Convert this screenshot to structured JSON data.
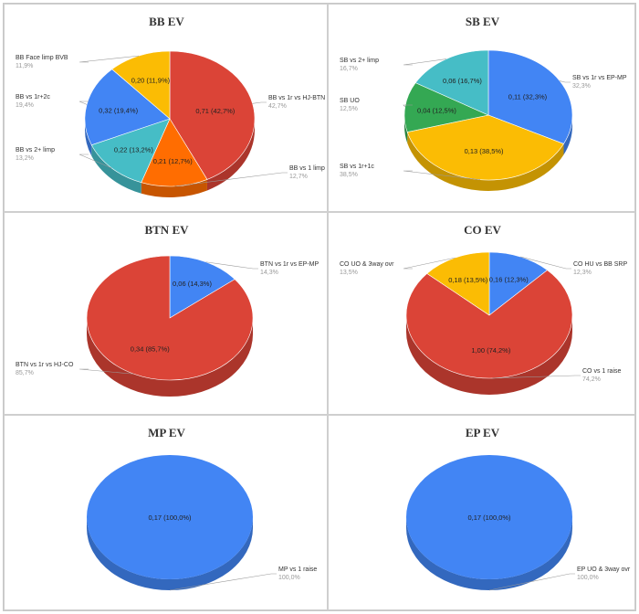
{
  "chart_data": [
    {
      "type": "pie",
      "title": "BB EV",
      "slices": [
        {
          "name": "BB vs 1r vs HJ-BTN",
          "value": 0.71,
          "percent": "42,7%",
          "label": "0,71 (42,7%)",
          "color": "#db4437"
        },
        {
          "name": "BB vs 1 limp",
          "value": 0.21,
          "percent": "12,7%",
          "label": "0,21 (12,7%)",
          "color": "#ff6d01"
        },
        {
          "name": "BB vs 2+ limp",
          "value": 0.22,
          "percent": "13,2%",
          "label": "0,22 (13,2%)",
          "color": "#46bdc6"
        },
        {
          "name": "BB vs 1r+2c",
          "value": 0.32,
          "percent": "19,4%",
          "label": "0,32 (19,4%)",
          "color": "#4285f4"
        },
        {
          "name": "BB Face limp BVB",
          "value": 0.2,
          "percent": "11,9%",
          "label": "0,20 (11,9%)",
          "color": "#fbbc04"
        }
      ]
    },
    {
      "type": "pie",
      "title": "SB EV",
      "slices": [
        {
          "name": "SB vs 1r vs EP-MP",
          "value": 0.11,
          "percent": "32,3%",
          "label": "0,11 (32,3%)",
          "color": "#4285f4"
        },
        {
          "name": "SB vs 1r+1c",
          "value": 0.13,
          "percent": "38,5%",
          "label": "0,13 (38,5%)",
          "color": "#fbbc04"
        },
        {
          "name": "SB UO",
          "value": 0.04,
          "percent": "12,5%",
          "label": "0,04 (12,5%)",
          "color": "#34a853"
        },
        {
          "name": "SB vs 2+ limp",
          "value": 0.06,
          "percent": "16,7%",
          "label": "0,06 (16,7%)",
          "color": "#46bdc6"
        }
      ]
    },
    {
      "type": "pie",
      "title": "BTN EV",
      "slices": [
        {
          "name": "BTN vs 1r vs EP-MP",
          "value": 0.06,
          "percent": "14,3%",
          "label": "0,06 (14,3%)",
          "color": "#4285f4"
        },
        {
          "name": "BTN vs 1r vs HJ-CO",
          "value": 0.34,
          "percent": "85,7%",
          "label": "0,34 (85,7%)",
          "color": "#db4437"
        }
      ]
    },
    {
      "type": "pie",
      "title": "CO EV",
      "slices": [
        {
          "name": "CO HU vs BB SRP",
          "value": 0.16,
          "percent": "12,3%",
          "label": "0,16 (12,3%)",
          "color": "#4285f4"
        },
        {
          "name": "CO vs 1 raise",
          "value": 1.0,
          "percent": "74,2%",
          "label": "1,00 (74,2%)",
          "color": "#db4437"
        },
        {
          "name": "CO UO & 3way ovr",
          "value": 0.18,
          "percent": "13,5%",
          "label": "0,18 (13,5%)",
          "color": "#fbbc04"
        }
      ]
    },
    {
      "type": "pie",
      "title": "MP EV",
      "slices": [
        {
          "name": "MP vs 1 raise",
          "value": 0.17,
          "percent": "100,0%",
          "label": "0,17 (100,0%)",
          "color": "#4285f4"
        }
      ]
    },
    {
      "type": "pie",
      "title": "EP EV",
      "slices": [
        {
          "name": "EP UO & 3way ovr",
          "value": 0.17,
          "percent": "100,0%",
          "label": "0,17 (100,0%)",
          "color": "#4285f4"
        }
      ]
    }
  ]
}
